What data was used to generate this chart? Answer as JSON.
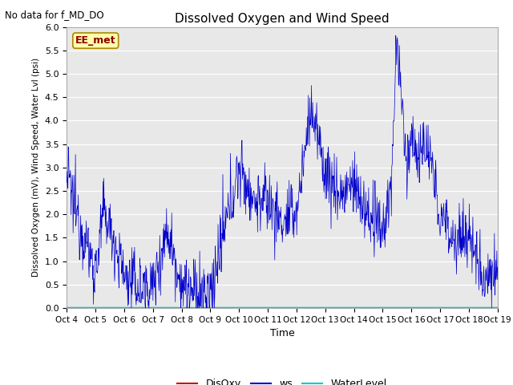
{
  "title": "Dissolved Oxygen and Wind Speed",
  "top_left_text": "No data for f_MD_DO",
  "annotation_text": "EE_met",
  "ylabel": "Dissolved Oxygen (mV), Wind Speed, Water Lvl (psi)",
  "xlabel": "Time",
  "ylim": [
    0.0,
    6.0
  ],
  "tick_labels": [
    "Oct 4",
    "Oct 5",
    "Oct 6",
    "Oct 7",
    "Oct 8",
    "Oct 9",
    "Oct 10",
    "Oct 11",
    "Oct 12",
    "Oct 13",
    "Oct 14",
    "Oct 15",
    "Oct 16",
    "Oct 17",
    "Oct 18",
    "Oct 19"
  ],
  "bg_color": "#e8e8e8",
  "ws_color": "#0000cc",
  "disoxy_color": "#cc0000",
  "waterlevel_color": "#00cccc",
  "legend_labels": [
    "DisOxy",
    "ws",
    "WaterLevel"
  ],
  "yticks": [
    0.0,
    0.5,
    1.0,
    1.5,
    2.0,
    2.5,
    3.0,
    3.5,
    4.0,
    4.5,
    5.0,
    5.5,
    6.0
  ],
  "n_days": 15,
  "pts_per_day": 72,
  "seed": 12345
}
